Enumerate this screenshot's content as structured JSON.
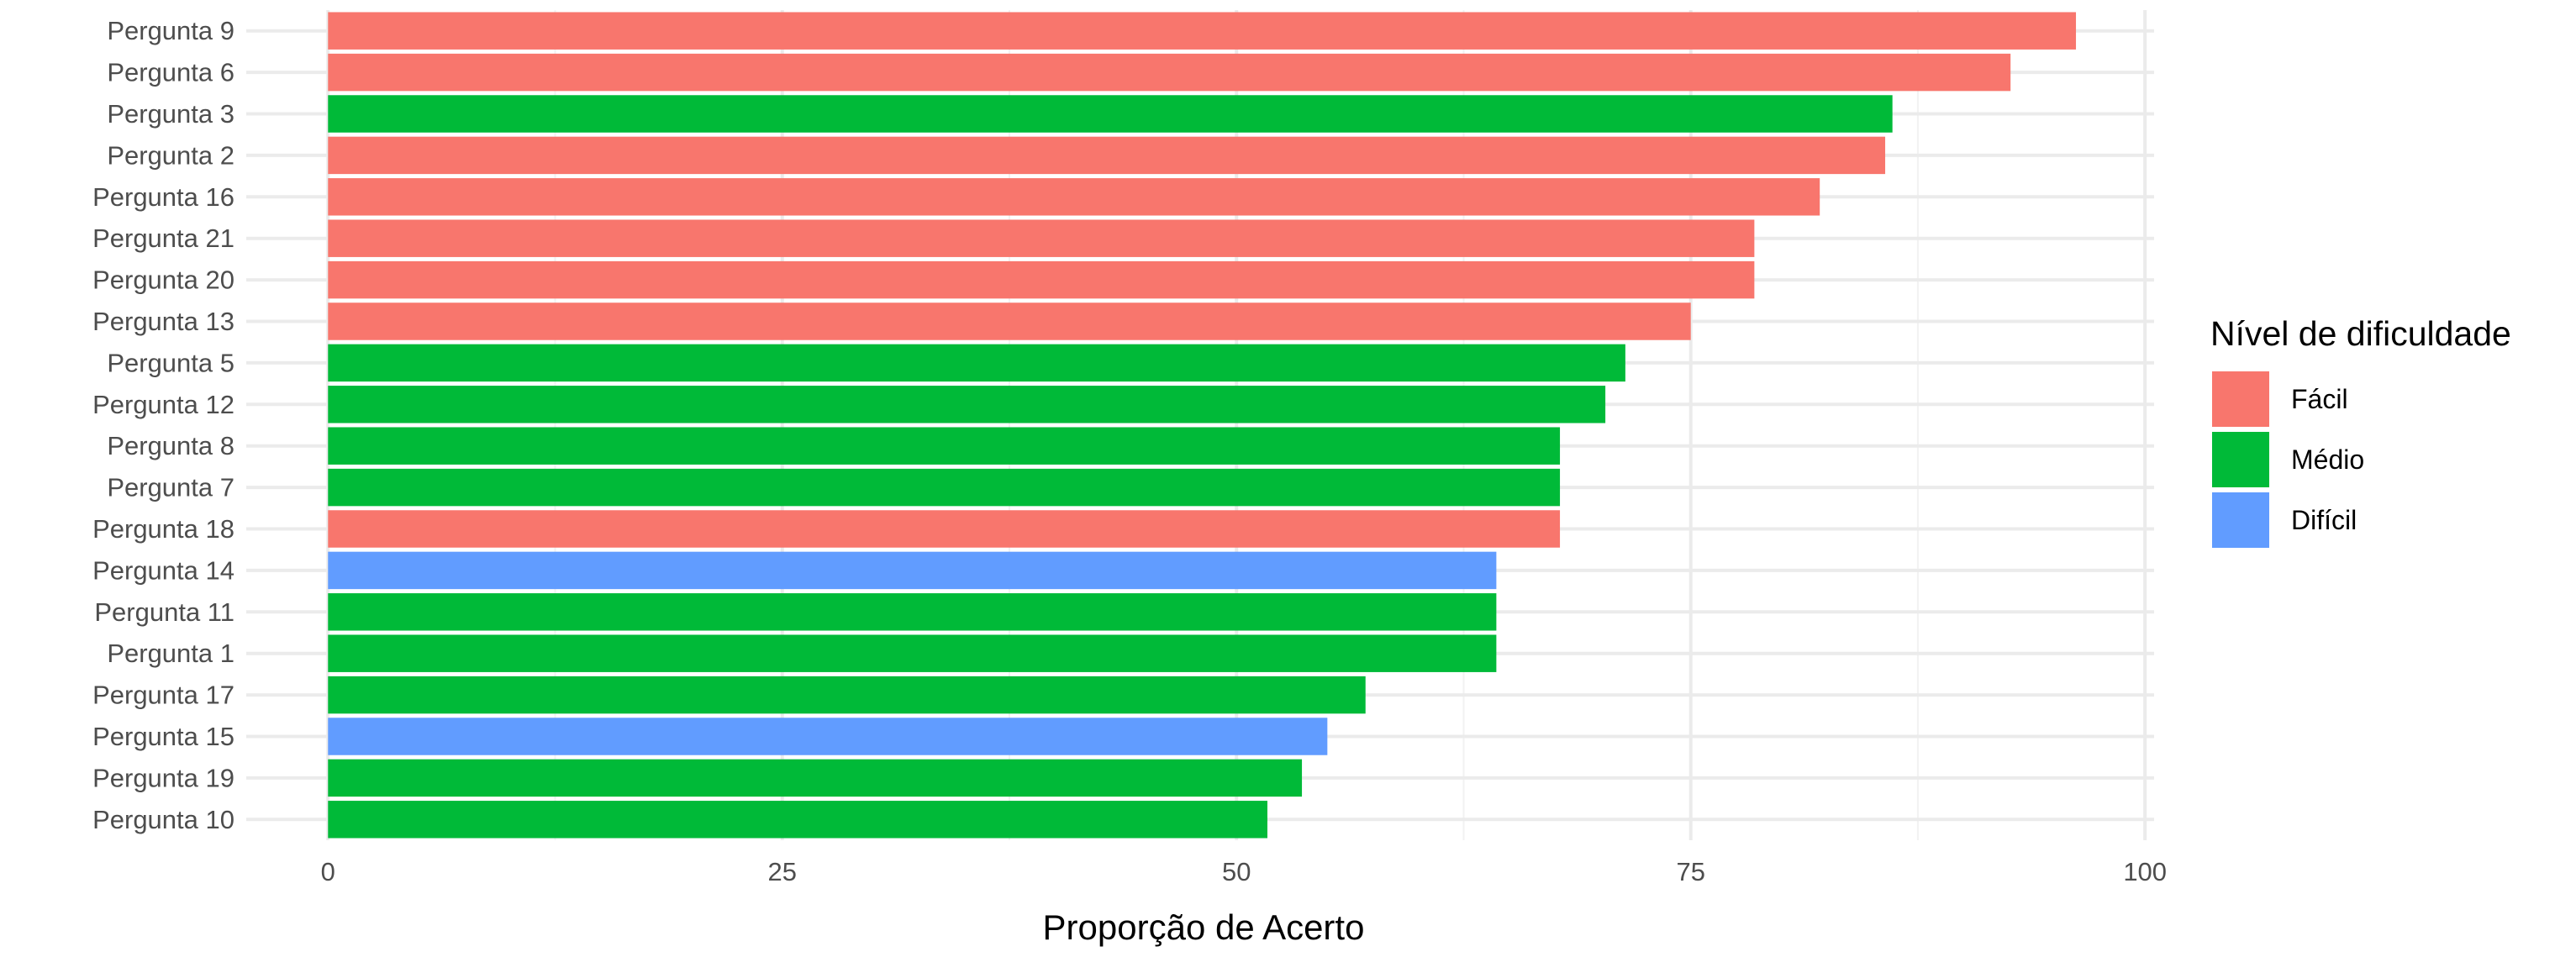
{
  "chart_data": {
    "type": "bar",
    "orientation": "horizontal",
    "title": "",
    "xlabel": "Proporção de Acerto",
    "ylabel": "",
    "xlim": [
      -4.5,
      100.5
    ],
    "x_ticks": [
      0,
      25,
      50,
      75,
      100
    ],
    "grid": true,
    "legend": {
      "title": "Nível de dificuldade",
      "placement": "right",
      "entries": [
        {
          "name": "Fácil",
          "color": "#F8766D"
        },
        {
          "name": "Médio",
          "color": "#00BA38"
        },
        {
          "name": "Difícil",
          "color": "#619CFF"
        }
      ]
    },
    "bars": [
      {
        "category": "Pergunta 9",
        "value": 96.2,
        "level": "Fácil"
      },
      {
        "category": "Pergunta 6",
        "value": 92.6,
        "level": "Fácil"
      },
      {
        "category": "Pergunta 3",
        "value": 86.1,
        "level": "Médio"
      },
      {
        "category": "Pergunta 2",
        "value": 85.7,
        "level": "Fácil"
      },
      {
        "category": "Pergunta 16",
        "value": 82.1,
        "level": "Fácil"
      },
      {
        "category": "Pergunta 21",
        "value": 78.5,
        "level": "Fácil"
      },
      {
        "category": "Pergunta 20",
        "value": 78.5,
        "level": "Fácil"
      },
      {
        "category": "Pergunta 13",
        "value": 75.0,
        "level": "Fácil"
      },
      {
        "category": "Pergunta 5",
        "value": 71.4,
        "level": "Médio"
      },
      {
        "category": "Pergunta 12",
        "value": 70.3,
        "level": "Médio"
      },
      {
        "category": "Pergunta 8",
        "value": 67.8,
        "level": "Médio"
      },
      {
        "category": "Pergunta 7",
        "value": 67.8,
        "level": "Médio"
      },
      {
        "category": "Pergunta 18",
        "value": 67.8,
        "level": "Fácil"
      },
      {
        "category": "Pergunta 14",
        "value": 64.3,
        "level": "Difícil"
      },
      {
        "category": "Pergunta 11",
        "value": 64.3,
        "level": "Médio"
      },
      {
        "category": "Pergunta 1",
        "value": 64.3,
        "level": "Médio"
      },
      {
        "category": "Pergunta 17",
        "value": 57.1,
        "level": "Médio"
      },
      {
        "category": "Pergunta 15",
        "value": 55.0,
        "level": "Difícil"
      },
      {
        "category": "Pergunta 19",
        "value": 53.6,
        "level": "Médio"
      },
      {
        "category": "Pergunta 10",
        "value": 51.7,
        "level": "Médio"
      }
    ]
  }
}
